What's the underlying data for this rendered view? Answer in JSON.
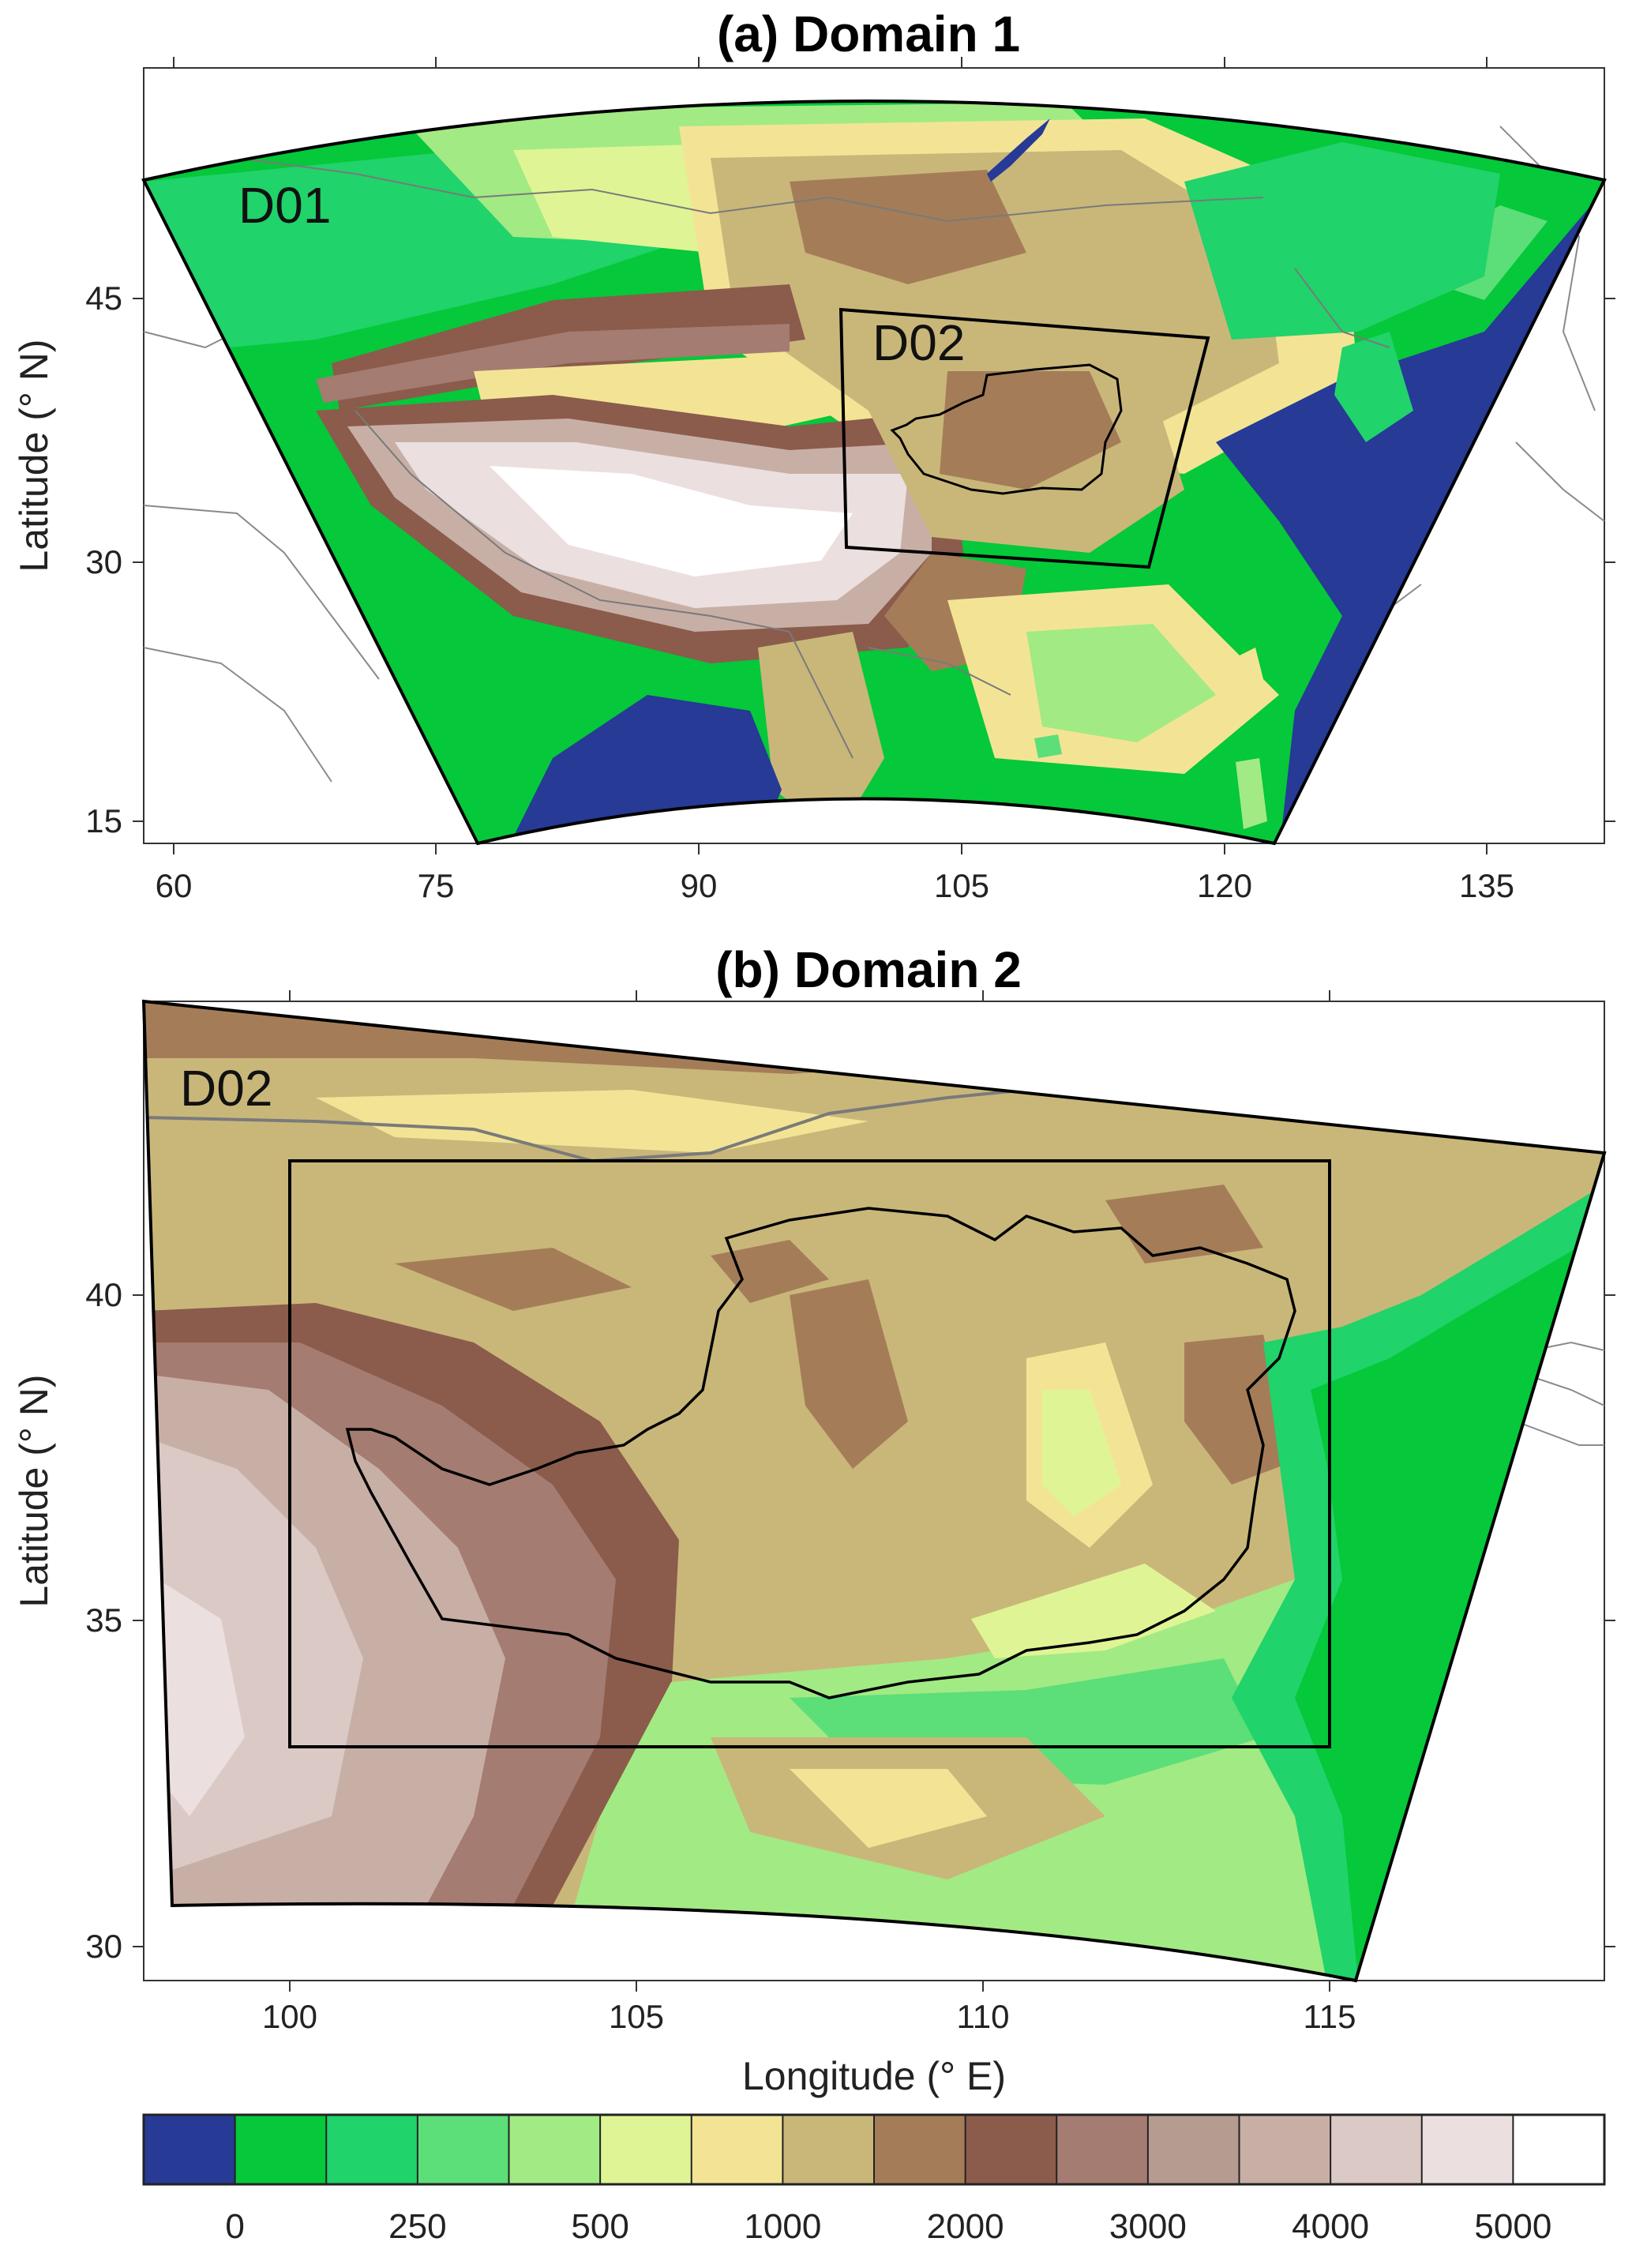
{
  "panel_a": {
    "title": "(a) Domain 1",
    "ylabel": "Latitude (° N)",
    "domain_label": "D01",
    "inner_domain_label": "D02",
    "x_ticks": [
      "60",
      "75",
      "90",
      "105",
      "120",
      "135"
    ],
    "y_ticks": [
      "45",
      "30",
      "15"
    ]
  },
  "panel_b": {
    "title": "(b) Domain 2",
    "ylabel": "Latitude (° N)",
    "xlabel": "Longitude (° E)",
    "domain_label": "D02",
    "x_ticks": [
      "100",
      "105",
      "110",
      "115"
    ],
    "y_ticks": [
      "40",
      "35",
      "30"
    ]
  },
  "colorbar": {
    "labels": [
      "0",
      "250",
      "500",
      "1000",
      "2000",
      "3000",
      "4000",
      "5000"
    ],
    "colors": [
      "#263a96",
      "#05c83a",
      "#20d36a",
      "#5cde78",
      "#a2ea84",
      "#dff595",
      "#f3e495",
      "#c9b77a",
      "#a47d58",
      "#8b5b4c",
      "#a47c71",
      "#b59b90",
      "#c8afa6",
      "#dbc9c5",
      "#ebe0df",
      "#ffffff"
    ]
  },
  "map_colors": {
    "ocean": "#263a96",
    "lowland": "#05c83a",
    "plateau_edge": "#c9b77a",
    "high_mountain": "#8b5b4c",
    "tibet": "#ebe0df",
    "border_line": "#7a7a7a"
  }
}
